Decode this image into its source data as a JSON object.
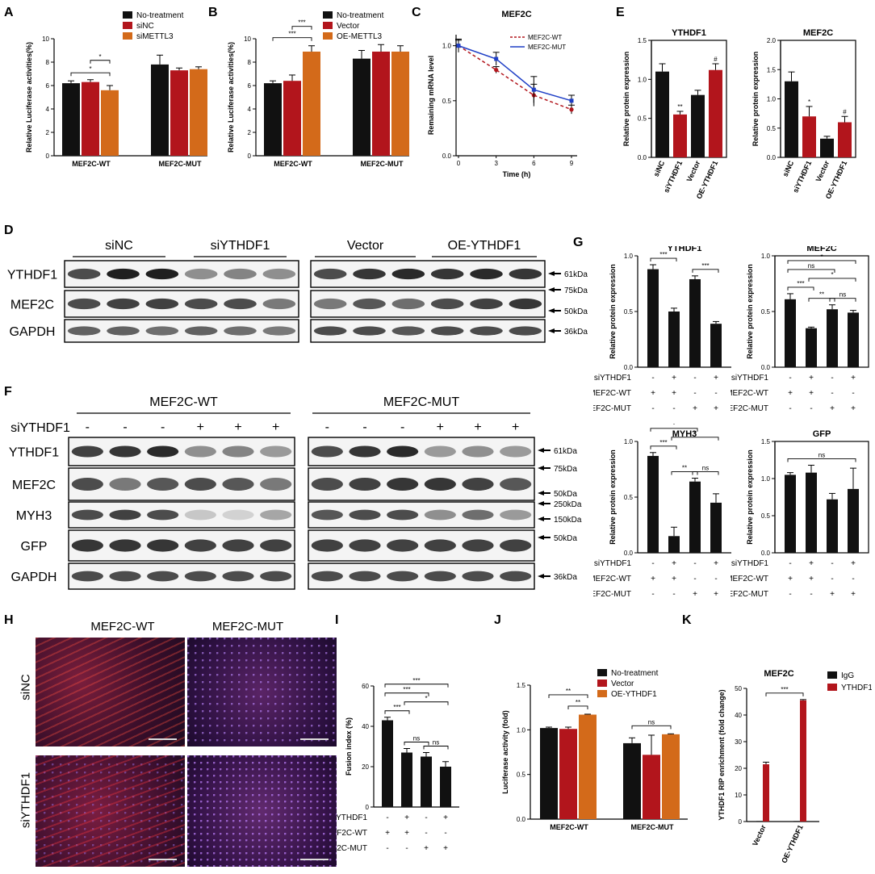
{
  "panels": {
    "A": "A",
    "B": "B",
    "C": "C",
    "D": "D",
    "E": "E",
    "F": "F",
    "G": "G",
    "H": "H",
    "I": "I",
    "J": "J",
    "K": "K"
  },
  "colors": {
    "black": "#111111",
    "red": "#b2151c",
    "orange": "#d36a1a",
    "blue": "#1f3fc6",
    "dashred": "#b2151c"
  },
  "chart_data": [
    {
      "id": "A",
      "type": "bar",
      "categories": [
        "MEF2C-WT",
        "MEF2C-MUT"
      ],
      "series": [
        {
          "name": "No-treatment",
          "values": [
            6.2,
            7.8
          ],
          "err": [
            0.2,
            0.8
          ]
        },
        {
          "name": "siNC",
          "values": [
            6.3,
            7.3
          ],
          "err": [
            0.2,
            0.2
          ]
        },
        {
          "name": "siMETTL3",
          "values": [
            5.6,
            7.4
          ],
          "err": [
            0.4,
            0.2
          ]
        }
      ],
      "ylabel": "Relative Luciferase activities(%)",
      "ylim": [
        0,
        10
      ],
      "yticks": [
        "0",
        "2",
        "4",
        "6",
        "8",
        "10"
      ],
      "sig": [
        {
          "label": "*",
          "a": [
            0,
            0
          ],
          "b": [
            0,
            2
          ],
          "lvl": 0
        },
        {
          "label": "*",
          "a": [
            0,
            1
          ],
          "b": [
            0,
            2
          ],
          "lvl": 1
        }
      ]
    },
    {
      "id": "B",
      "type": "bar",
      "categories": [
        "MEF2C-WT",
        "MEF2C-MUT"
      ],
      "series": [
        {
          "name": "No-treatment",
          "values": [
            6.2,
            8.3
          ],
          "err": [
            0.2,
            0.7
          ]
        },
        {
          "name": "Vector",
          "values": [
            6.4,
            8.9
          ],
          "err": [
            0.5,
            0.6
          ]
        },
        {
          "name": "OE-METTL3",
          "values": [
            8.9,
            8.9
          ],
          "err": [
            0.5,
            0.5
          ]
        }
      ],
      "ylabel": "Relative Luciferase activities(%)",
      "ylim": [
        0,
        10
      ],
      "yticks": [
        "0",
        "2",
        "4",
        "6",
        "8",
        "10"
      ],
      "sig": [
        {
          "label": "***",
          "a": [
            0,
            0
          ],
          "b": [
            0,
            2
          ],
          "lvl": 0
        },
        {
          "label": "***",
          "a": [
            0,
            1
          ],
          "b": [
            0,
            2
          ],
          "lvl": 1
        }
      ]
    },
    {
      "id": "C",
      "type": "line",
      "title": "MEF2C",
      "x": [
        0,
        3,
        6,
        9
      ],
      "xticks": [
        "0",
        "3",
        "6",
        "9"
      ],
      "series": [
        {
          "name": "MEF2C-WT",
          "values": [
            1.0,
            0.78,
            0.55,
            0.42
          ],
          "err": [
            0.05,
            0.03,
            0.1,
            0.04
          ]
        },
        {
          "name": "MEF2C-MUT",
          "values": [
            1.0,
            0.88,
            0.6,
            0.5
          ],
          "err": [
            0.06,
            0.06,
            0.12,
            0.05
          ]
        }
      ],
      "xlabel": "Time (h)",
      "ylabel": "Remaining mRNA level",
      "ylim": [
        0,
        1.1
      ],
      "yticks": [
        "0.0",
        "0.5",
        "1.0"
      ]
    },
    {
      "id": "E1",
      "type": "bar",
      "title": "YTHDF1",
      "categories": [
        "siNC",
        "siYTHDF1",
        "Vector",
        "OE-YTHDF1"
      ],
      "values": [
        1.1,
        0.55,
        0.8,
        1.12
      ],
      "err": [
        0.1,
        0.04,
        0.06,
        0.08
      ],
      "marks": [
        "",
        "**",
        "",
        "#"
      ],
      "ylabel": "Relative protein expression",
      "ylim": [
        0,
        1.5
      ],
      "yticks": [
        "0.0",
        "0.5",
        "1.0",
        "1.5"
      ]
    },
    {
      "id": "E2",
      "type": "bar",
      "title": "MEF2C",
      "categories": [
        "siNC",
        "siYTHDF1",
        "Vector",
        "OE-YTHDF1"
      ],
      "values": [
        1.3,
        0.7,
        0.32,
        0.6
      ],
      "err": [
        0.16,
        0.17,
        0.04,
        0.1
      ],
      "marks": [
        "",
        "*",
        "",
        "#"
      ],
      "ylabel": "Relative protein expression",
      "ylim": [
        0,
        2.0
      ],
      "yticks": [
        "0.0",
        "0.5",
        "1.0",
        "1.5",
        "2.0"
      ]
    },
    {
      "id": "G1",
      "type": "bar",
      "title": "YTHDF1",
      "values": [
        0.88,
        0.5,
        0.79,
        0.39
      ],
      "err": [
        0.04,
        0.03,
        0.03,
        0.02
      ],
      "ylabel": "Relative protein expression",
      "ylim": [
        0,
        1.0
      ],
      "yticks": [
        "0.0",
        "0.5",
        "1.0"
      ],
      "sig": [
        {
          "label": "***",
          "i": 0,
          "j": 1,
          "lvl": 0
        },
        {
          "label": "***",
          "i": 2,
          "j": 3,
          "lvl": 0
        }
      ]
    },
    {
      "id": "G2",
      "type": "bar",
      "title": "MEF2C",
      "values": [
        0.61,
        0.35,
        0.52,
        0.49
      ],
      "err": [
        0.05,
        0.01,
        0.04,
        0.02
      ],
      "ylabel": "Relative protein expression",
      "ylim": [
        0,
        1.0
      ],
      "yticks": [
        "0.0",
        "0.5",
        "1.0"
      ],
      "sig": [
        {
          "label": "***",
          "i": 0,
          "j": 1,
          "lvl": 0
        },
        {
          "label": "**",
          "i": 1,
          "j": 2,
          "lvl": -1
        },
        {
          "label": "ns",
          "i": 2,
          "j": 3,
          "lvl": -1
        },
        {
          "label": "*",
          "i": 1,
          "j": 3,
          "lvl": 1
        },
        {
          "label": "ns",
          "i": 0,
          "j": 2,
          "lvl": 2
        },
        {
          "label": "*",
          "i": 0,
          "j": 3,
          "lvl": 3
        }
      ]
    },
    {
      "id": "G3",
      "type": "bar",
      "title": "MYH3",
      "values": [
        0.87,
        0.15,
        0.64,
        0.45
      ],
      "err": [
        0.03,
        0.08,
        0.03,
        0.08
      ],
      "ylabel": "Relative protein expression",
      "ylim": [
        0,
        1.0
      ],
      "yticks": [
        "0.0",
        "0.5",
        "1.0"
      ],
      "sig": [
        {
          "label": "***",
          "i": 0,
          "j": 1,
          "lvl": 0
        },
        {
          "label": "**",
          "i": 1,
          "j": 2,
          "lvl": -1
        },
        {
          "label": "ns",
          "i": 2,
          "j": 3,
          "lvl": -1
        },
        {
          "label": "*",
          "i": 1,
          "j": 3,
          "lvl": 1
        },
        {
          "label": "*",
          "i": 0,
          "j": 2,
          "lvl": 2
        },
        {
          "label": "**",
          "i": 0,
          "j": 3,
          "lvl": 3
        }
      ]
    },
    {
      "id": "G4",
      "type": "bar",
      "title": "GFP",
      "values": [
        1.05,
        1.08,
        0.72,
        0.86
      ],
      "err": [
        0.03,
        0.1,
        0.08,
        0.28
      ],
      "ylabel": "Relative protein expression",
      "ylim": [
        0,
        1.5
      ],
      "yticks": [
        "0.0",
        "0.5",
        "1.0",
        "1.5"
      ],
      "sig": [
        {
          "label": "ns",
          "i": 0,
          "j": 3,
          "lvl": 0
        }
      ]
    },
    {
      "id": "I",
      "type": "bar",
      "values": [
        43,
        27,
        25,
        20
      ],
      "err": [
        1.5,
        2,
        2,
        2.5
      ],
      "ylabel": "Fusion index (%)",
      "ylim": [
        0,
        60
      ],
      "yticks": [
        "0",
        "20",
        "40",
        "60"
      ],
      "sig": [
        {
          "label": "***",
          "i": 0,
          "j": 1,
          "lvl": 0
        },
        {
          "label": "ns",
          "i": 1,
          "j": 2,
          "lvl": -1
        },
        {
          "label": "ns",
          "i": 2,
          "j": 3,
          "lvl": -1
        },
        {
          "label": "*",
          "i": 1,
          "j": 3,
          "lvl": 1
        },
        {
          "label": "***",
          "i": 0,
          "j": 2,
          "lvl": 2
        },
        {
          "label": "***",
          "i": 0,
          "j": 3,
          "lvl": 3
        }
      ]
    },
    {
      "id": "J",
      "type": "bar",
      "categories": [
        "MEF2C-WT",
        "MEF2C-MUT"
      ],
      "series": [
        {
          "name": "No-treatment",
          "values": [
            1.02,
            0.85
          ],
          "err": [
            0.01,
            0.06
          ]
        },
        {
          "name": "Vector",
          "values": [
            1.01,
            0.72
          ],
          "err": [
            0.02,
            0.22
          ]
        },
        {
          "name": "OE-YTHDF1",
          "values": [
            1.17,
            0.95
          ],
          "err": [
            0.005,
            0.005
          ]
        }
      ],
      "ylabel": "Luciferase activity (fold)",
      "ylim": [
        0,
        1.5
      ],
      "yticks": [
        "0.0",
        "0.5",
        "1.0",
        "1.5"
      ],
      "sig": [
        {
          "label": "**",
          "a": [
            0,
            0
          ],
          "b": [
            0,
            2
          ],
          "lvl": 1
        },
        {
          "label": "**",
          "a": [
            0,
            1
          ],
          "b": [
            0,
            2
          ],
          "lvl": 0
        },
        {
          "label": "ns",
          "a": [
            1,
            0
          ],
          "b": [
            1,
            2
          ],
          "lvl": 0
        }
      ]
    },
    {
      "id": "K",
      "type": "bar",
      "title": "MEF2C",
      "categories": [
        "Vector",
        "OE-YTHDF1"
      ],
      "series": [
        {
          "name": "IgG",
          "values": [
            0.2,
            0.2
          ],
          "err": [
            0,
            0
          ]
        },
        {
          "name": "YTHDF1",
          "values": [
            21.5,
            45.5
          ],
          "err": [
            0.8,
            0.3
          ]
        }
      ],
      "ylabel": "YTHDF1 RIP enrichment (fold change)",
      "ylim": [
        0,
        50
      ],
      "yticks": [
        "0",
        "10",
        "20",
        "30",
        "40",
        "50"
      ],
      "sig": [
        {
          "label": "***"
        }
      ]
    }
  ],
  "grid_labels": {
    "siYTHDF1": "siYTHDF1",
    "wt": "MEF2C-WT",
    "mut": "MEF2C-MUT",
    "g_si": [
      "-",
      "+",
      "-",
      "+"
    ],
    "g_wt": [
      "+",
      "+",
      "-",
      "-"
    ],
    "g_mut": [
      "-",
      "-",
      "+",
      "+"
    ]
  },
  "blots": {
    "D": {
      "groups": [
        "siNC",
        "siYTHDF1",
        "Vector",
        "OE-YTHDF1"
      ],
      "rows": [
        "YTHDF1",
        "MEF2C",
        "GAPDH"
      ],
      "kda": [
        "61kDa",
        "75kDa",
        "50kDa",
        "36kDa"
      ]
    },
    "F": {
      "groups": [
        "MEF2C-WT",
        "MEF2C-MUT"
      ],
      "lanes_label": "siYTHDF1",
      "lane_signs": [
        "-",
        "-",
        "-",
        "+",
        "+",
        "+"
      ],
      "rows": [
        "YTHDF1",
        "MEF2C",
        "MYH3",
        "GFP",
        "GAPDH"
      ],
      "kda": [
        "61kDa",
        "75kDa",
        "50kDa",
        "250kDa",
        "150kDa",
        "50kDa",
        "36kDa"
      ]
    }
  },
  "micro": {
    "cols": [
      "MEF2C-WT",
      "MEF2C-MUT"
    ],
    "rows": [
      "siNC",
      "siYTHDF1"
    ]
  }
}
